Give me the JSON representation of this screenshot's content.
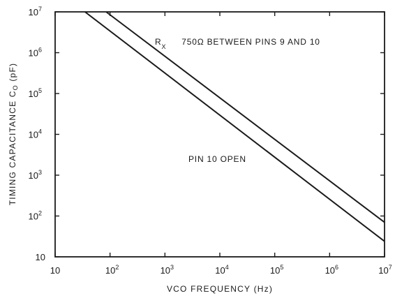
{
  "chart_data": {
    "type": "line",
    "title": "",
    "x_scale": "log",
    "y_scale": "log",
    "xlim": [
      10,
      10000000
    ],
    "ylim": [
      10,
      10000000
    ],
    "xlabel": "VCO FREQUENCY (Hz)",
    "ylabel": "TIMING CAPACITANCE C",
    "ylabel_subscript": "O",
    "ylabel_unit": " (pF)",
    "grid": false,
    "x_ticks": [
      {
        "value": 10,
        "base": "10",
        "exp": ""
      },
      {
        "value": 100,
        "base": "10",
        "exp": "2"
      },
      {
        "value": 1000,
        "base": "10",
        "exp": "3"
      },
      {
        "value": 10000,
        "base": "10",
        "exp": "4"
      },
      {
        "value": 100000,
        "base": "10",
        "exp": "5"
      },
      {
        "value": 1000000,
        "base": "10",
        "exp": "6"
      },
      {
        "value": 10000000,
        "base": "10",
        "exp": "7"
      }
    ],
    "y_ticks": [
      {
        "value": 10,
        "base": "10",
        "exp": ""
      },
      {
        "value": 100,
        "base": "10",
        "exp": "2"
      },
      {
        "value": 1000,
        "base": "10",
        "exp": "3"
      },
      {
        "value": 10000,
        "base": "10",
        "exp": "4"
      },
      {
        "value": 100000,
        "base": "10",
        "exp": "5"
      },
      {
        "value": 1000000,
        "base": "10",
        "exp": "6"
      },
      {
        "value": 10000000,
        "base": "10",
        "exp": "7"
      }
    ],
    "series": [
      {
        "name": "PIN 10 OPEN",
        "x": [
          35,
          10000000
        ],
        "y": [
          10000000,
          24
        ]
      },
      {
        "name": "R X 750Ω BETWEEN PINS 9 AND 10",
        "name_parts": {
          "symbol": "R",
          "subscript": "X",
          "text": "750Ω BETWEEN PINS 9 AND 10"
        },
        "x": [
          85,
          10000000
        ],
        "y": [
          10000000,
          70
        ]
      }
    ],
    "colors": {
      "line": "#1a1a1a",
      "text": "#1a1a1a"
    }
  }
}
